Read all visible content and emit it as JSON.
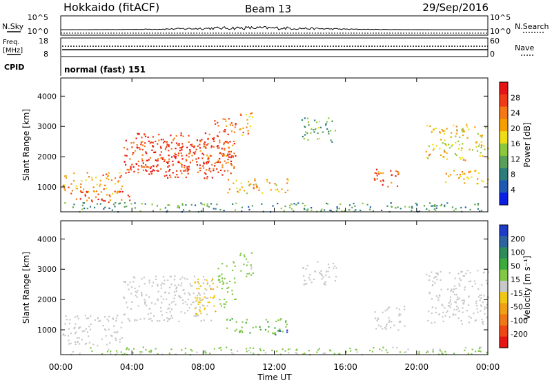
{
  "header": {
    "station": "Hokkaido (fitACF)",
    "beam": "Beam 13",
    "date": "29/Sep/2016"
  },
  "top_panels": {
    "nsky_label": "N.Sky",
    "nsky_ticks": [
      "10^5",
      "10^0"
    ],
    "nsearch_ticks": [
      "10^5",
      "10^0"
    ],
    "nsearch_label": "N.Search",
    "freq_label_1": "Freq.",
    "freq_label_2": "[MHz]",
    "freq_ticks": [
      "18",
      "8"
    ],
    "nave_ticks": [
      "60",
      "0"
    ],
    "nave_label": "Nave",
    "cpid_label": "CPID",
    "cpid_value": "normal (fast) 151"
  },
  "colors": {
    "power_scale": [
      "#0a1ee6",
      "#1e5ab4",
      "#2d7d7d",
      "#5aa05a",
      "#8cc83c",
      "#f0dc14",
      "#f5a000",
      "#f57814",
      "#f03c14",
      "#e61414"
    ],
    "velocity_scale": [
      "#1e3cc8",
      "#2d64a0",
      "#2d8c5a",
      "#3caa3c",
      "#82c846",
      "#c8c8c8",
      "#f0c814",
      "#f0a014",
      "#f07814",
      "#f04614",
      "#e61414"
    ],
    "ground_scatter": "#c8c8c8"
  },
  "chart_data": [
    {
      "type": "heatmap",
      "title": "",
      "xlabel": "Time UT",
      "ylabel": "Slant Range [km]",
      "x_ticks": [
        "00:00",
        "04:00",
        "08:00",
        "12:00",
        "16:00",
        "20:00",
        "00:00"
      ],
      "y_ticks": [
        "1000",
        "2000",
        "3000",
        "4000"
      ],
      "xlim": [
        0,
        24
      ],
      "ylim": [
        180,
        4600
      ],
      "colorbar_label": "Power [dB]",
      "colorbar_ticks": [
        "4",
        "8",
        "12",
        "16",
        "20",
        "24",
        "28"
      ],
      "colorbar_range": [
        0,
        32
      ],
      "regions": [
        {
          "t0": 0.0,
          "t1": 3.5,
          "r0": 800,
          "r1": 1500,
          "value": 22
        },
        {
          "t0": 0.5,
          "t1": 4.0,
          "r0": 500,
          "r1": 900,
          "value": 25
        },
        {
          "t0": 3.5,
          "t1": 9.8,
          "r0": 1300,
          "r1": 2600,
          "value": 28
        },
        {
          "t0": 4.0,
          "t1": 8.5,
          "r0": 1500,
          "r1": 2800,
          "value": 27
        },
        {
          "t0": 8.5,
          "t1": 9.8,
          "r0": 1800,
          "r1": 3300,
          "value": 26
        },
        {
          "t0": 9.3,
          "t1": 12.8,
          "r0": 800,
          "r1": 1300,
          "value": 20
        },
        {
          "t0": 10.0,
          "t1": 10.8,
          "r0": 2700,
          "r1": 3600,
          "value": 22
        },
        {
          "t0": 13.5,
          "t1": 15.5,
          "r0": 2500,
          "r1": 3300,
          "value": 12
        },
        {
          "t0": 17.5,
          "t1": 19.0,
          "r0": 1000,
          "r1": 1700,
          "value": 26
        },
        {
          "t0": 20.5,
          "t1": 24.0,
          "r0": 1900,
          "r1": 3100,
          "value": 18
        },
        {
          "t0": 21.5,
          "t1": 24.0,
          "r0": 1100,
          "r1": 1600,
          "value": 20
        },
        {
          "t0": 0.0,
          "t1": 24.0,
          "r0": 200,
          "r1": 500,
          "value": 10
        }
      ]
    },
    {
      "type": "heatmap",
      "title": "",
      "xlabel": "Time UT",
      "ylabel": "Slant Range [km]",
      "x_ticks": [
        "00:00",
        "04:00",
        "08:00",
        "12:00",
        "16:00",
        "20:00",
        "00:00"
      ],
      "y_ticks": [
        "1000",
        "2000",
        "3000",
        "4000"
      ],
      "xlim": [
        0,
        24
      ],
      "ylim": [
        180,
        4600
      ],
      "colorbar_label": "Velocity [m s⁻¹]",
      "colorbar_ticks": [
        "200",
        "100",
        "50",
        "15",
        "-15",
        "-50",
        "-100",
        "-200"
      ],
      "colorbar_range": [
        -250,
        250
      ],
      "regions": [
        {
          "t0": 0.0,
          "t1": 3.5,
          "r0": 500,
          "r1": 1500,
          "value": 0
        },
        {
          "t0": 3.5,
          "t1": 8.5,
          "r0": 1300,
          "r1": 2800,
          "value": 0
        },
        {
          "t0": 7.5,
          "t1": 8.8,
          "r0": 1400,
          "r1": 2700,
          "value": -60
        },
        {
          "t0": 8.8,
          "t1": 9.8,
          "r0": 1700,
          "r1": 3300,
          "value": 40
        },
        {
          "t0": 9.3,
          "t1": 12.8,
          "r0": 900,
          "r1": 1400,
          "value": 60
        },
        {
          "t0": 12.0,
          "t1": 12.8,
          "r0": 850,
          "r1": 1100,
          "value": 200
        },
        {
          "t0": 10.0,
          "t1": 10.8,
          "r0": 2700,
          "r1": 3600,
          "value": 40
        },
        {
          "t0": 13.5,
          "t1": 15.5,
          "r0": 2500,
          "r1": 3300,
          "value": 0
        },
        {
          "t0": 17.5,
          "t1": 19.3,
          "r0": 1000,
          "r1": 1800,
          "value": 0
        },
        {
          "t0": 20.5,
          "t1": 24.0,
          "r0": 1200,
          "r1": 3000,
          "value": 0
        },
        {
          "t0": 0.0,
          "t1": 24.0,
          "r0": 200,
          "r1": 450,
          "value": 30
        }
      ]
    }
  ]
}
